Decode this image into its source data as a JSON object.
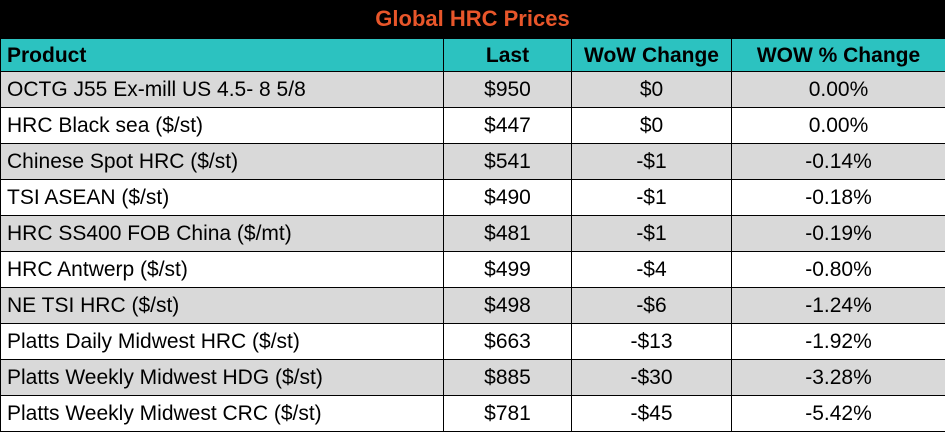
{
  "title": "Global HRC Prices",
  "columns": {
    "product": "Product",
    "last": "Last",
    "wow_change": "WoW Change",
    "wow_pct_change": "WOW % Change"
  },
  "rows": [
    {
      "product": "OCTG J55 Ex-mill US 4.5- 8 5/8",
      "last": "$950",
      "wow_change": "$0",
      "wow_pct_change": "0.00%"
    },
    {
      "product": "HRC Black sea ($/st)",
      "last": "$447",
      "wow_change": "$0",
      "wow_pct_change": "0.00%"
    },
    {
      "product": "Chinese Spot HRC ($/st)",
      "last": "$541",
      "wow_change": "-$1",
      "wow_pct_change": "-0.14%"
    },
    {
      "product": "TSI ASEAN ($/st)",
      "last": "$490",
      "wow_change": "-$1",
      "wow_pct_change": "-0.18%"
    },
    {
      "product": "HRC SS400 FOB China ($/mt)",
      "last": "$481",
      "wow_change": "-$1",
      "wow_pct_change": "-0.19%"
    },
    {
      "product": "HRC Antwerp ($/st)",
      "last": "$499",
      "wow_change": "-$4",
      "wow_pct_change": "-0.80%"
    },
    {
      "product": "NE TSI HRC ($/st)",
      "last": "$498",
      "wow_change": "-$6",
      "wow_pct_change": "-1.24%"
    },
    {
      "product": "Platts Daily Midwest HRC ($/st)",
      "last": "$663",
      "wow_change": "-$13",
      "wow_pct_change": "-1.92%"
    },
    {
      "product": "Platts Weekly Midwest HDG ($/st)",
      "last": "$885",
      "wow_change": "-$30",
      "wow_pct_change": "-3.28%"
    },
    {
      "product": "Platts Weekly Midwest CRC ($/st)",
      "last": "$781",
      "wow_change": "-$45",
      "wow_pct_change": "-5.42%"
    }
  ],
  "colors": {
    "title_text": "#e8562a",
    "header_bg": "#2cc2c0",
    "row_alt_bg": "#d9d9d9",
    "row_bg": "#ffffff",
    "border": "#000000"
  }
}
